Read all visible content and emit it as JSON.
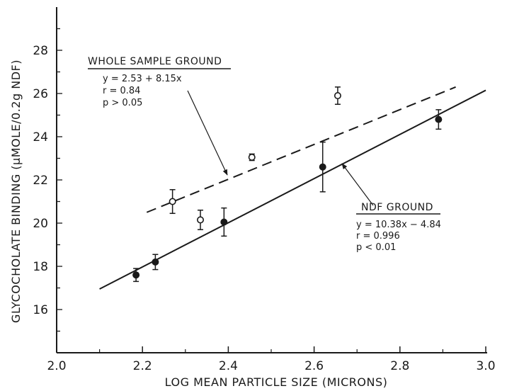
{
  "chart_data": {
    "type": "scatter",
    "xlabel": "LOG MEAN PARTICLE SIZE (MICRONS)",
    "ylabel": "GLYCOCHOLATE BINDING (μMOLE/0.2g NDF)",
    "xlim": [
      2.0,
      3.0
    ],
    "ylim": [
      14.0,
      30.0
    ],
    "x_ticks": [
      2.0,
      2.2,
      2.4,
      2.6,
      2.8,
      3.0
    ],
    "x_tick_labels": [
      "2.0",
      "2.2",
      "2.4",
      "2.6",
      "2.8",
      "3.0"
    ],
    "y_ticks": [
      16,
      18,
      20,
      22,
      24,
      26,
      28
    ],
    "y_tick_labels": [
      "16",
      "18",
      "20",
      "22",
      "24",
      "26",
      "28"
    ],
    "grid": false,
    "series": [
      {
        "name": "WHOLE SAMPLE GROUND",
        "marker": "open-circle",
        "points": [
          {
            "x": 2.27,
            "y": 21.0,
            "err": 0.55
          },
          {
            "x": 2.335,
            "y": 20.15,
            "err": 0.45
          },
          {
            "x": 2.455,
            "y": 23.05,
            "err": 0.15
          },
          {
            "x": 2.655,
            "y": 25.9,
            "err": 0.4
          }
        ],
        "fit": {
          "style": "dashed",
          "x": [
            2.21,
            2.93
          ],
          "y": [
            20.5,
            26.3
          ],
          "annotation": [
            "y = 2.53 + 8.15x",
            "r = 0.84",
            "p > 0.05"
          ]
        }
      },
      {
        "name": "NDF GROUND",
        "marker": "filled-circle",
        "points": [
          {
            "x": 2.185,
            "y": 17.6,
            "err": 0.3
          },
          {
            "x": 2.23,
            "y": 18.2,
            "err": 0.35
          },
          {
            "x": 2.39,
            "y": 20.05,
            "err": 0.65
          },
          {
            "x": 2.62,
            "y": 22.6,
            "err": 1.15
          },
          {
            "x": 2.89,
            "y": 24.8,
            "err": 0.45
          }
        ],
        "fit": {
          "style": "solid",
          "x": [
            2.1,
            3.0
          ],
          "y": [
            16.95,
            26.15
          ],
          "annotation": [
            "y = 10.38x − 4.84",
            "r = 0.996",
            "p < 0.01"
          ]
        }
      }
    ]
  }
}
